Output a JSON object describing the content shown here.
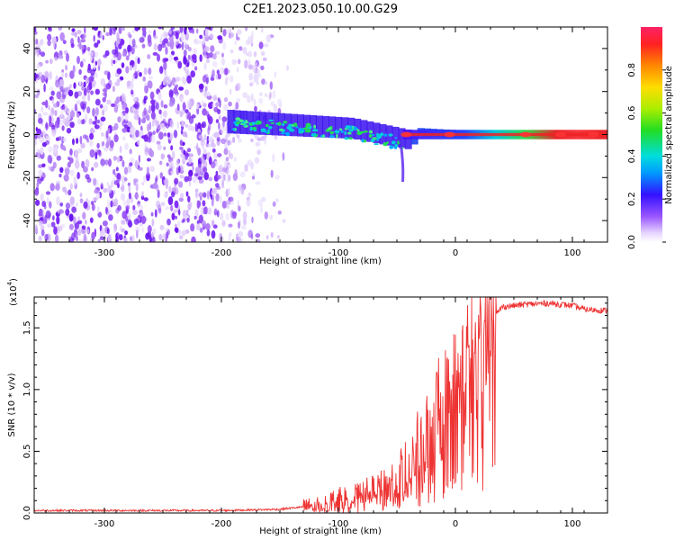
{
  "title": "C2E1.2023.050.10.00.G29",
  "chart_data": [
    {
      "type": "heatmap",
      "title": "C2E1.2023.050.10.00.G29",
      "xlabel": "Height of straight line (km)",
      "ylabel": "Frequency (Hz)",
      "xlim": [
        -360,
        130
      ],
      "ylim": [
        -50,
        50
      ],
      "xticks": [
        -300,
        -200,
        -100,
        0,
        100
      ],
      "xtick_labels": [
        "-300",
        "-200",
        "-100",
        "0",
        "100"
      ],
      "yticks": [
        -40,
        -20,
        0,
        20,
        40
      ],
      "ytick_labels": [
        "-40",
        "-20",
        "0",
        "20",
        "40"
      ],
      "colorbar": {
        "label": "Normalized spectral amplitude",
        "range": [
          0,
          1
        ],
        "ticks": [
          0.0,
          0.2,
          0.4,
          0.6,
          0.8
        ],
        "tick_labels": [
          "0.0",
          "0.2",
          "0.4",
          "0.6",
          "0.8"
        ]
      },
      "regions": [
        {
          "name": "noise",
          "x_range": [
            -360,
            -150
          ],
          "freq_range": [
            -50,
            50
          ],
          "amplitude": 0.12
        },
        {
          "name": "echo-band",
          "x_range": [
            -195,
            130
          ],
          "freq_center_start": 6,
          "freq_center_end": 0,
          "amplitude_start": 0.3,
          "amplitude_end": 0.9
        },
        {
          "name": "doppler-tail",
          "x": -45,
          "freq_range": [
            -22,
            0
          ],
          "amplitude": 0.2
        }
      ]
    },
    {
      "type": "line",
      "xlabel": "Height of straight line (km)",
      "ylabel": "SNR (10 * v/v)",
      "scale_label": "(x10",
      "scale_exp": "4",
      "scale_close": ")",
      "xlim": [
        -360,
        130
      ],
      "ylim": [
        0,
        1.75
      ],
      "xticks": [
        -300,
        -200,
        -100,
        0,
        100
      ],
      "xtick_labels": [
        "-300",
        "-200",
        "-100",
        "0",
        "100"
      ],
      "yticks": [
        0.0,
        0.5,
        1.0,
        1.5
      ],
      "ytick_labels": [
        "0.0",
        "0.5",
        "1.0",
        "1.5"
      ],
      "series": [
        {
          "name": "SNR",
          "color": "#ee3333",
          "x": [
            -360,
            -200,
            -150,
            -120,
            -100,
            -80,
            -60,
            -45,
            -30,
            -20,
            -10,
            0,
            10,
            20,
            30,
            40,
            60,
            80,
            100,
            110,
            130
          ],
          "values": [
            0.02,
            0.02,
            0.03,
            0.06,
            0.1,
            0.13,
            0.18,
            0.3,
            0.45,
            0.65,
            0.9,
            1.05,
            1.25,
            1.4,
            1.55,
            1.67,
            1.69,
            1.7,
            1.68,
            1.65,
            1.64
          ]
        }
      ]
    }
  ]
}
